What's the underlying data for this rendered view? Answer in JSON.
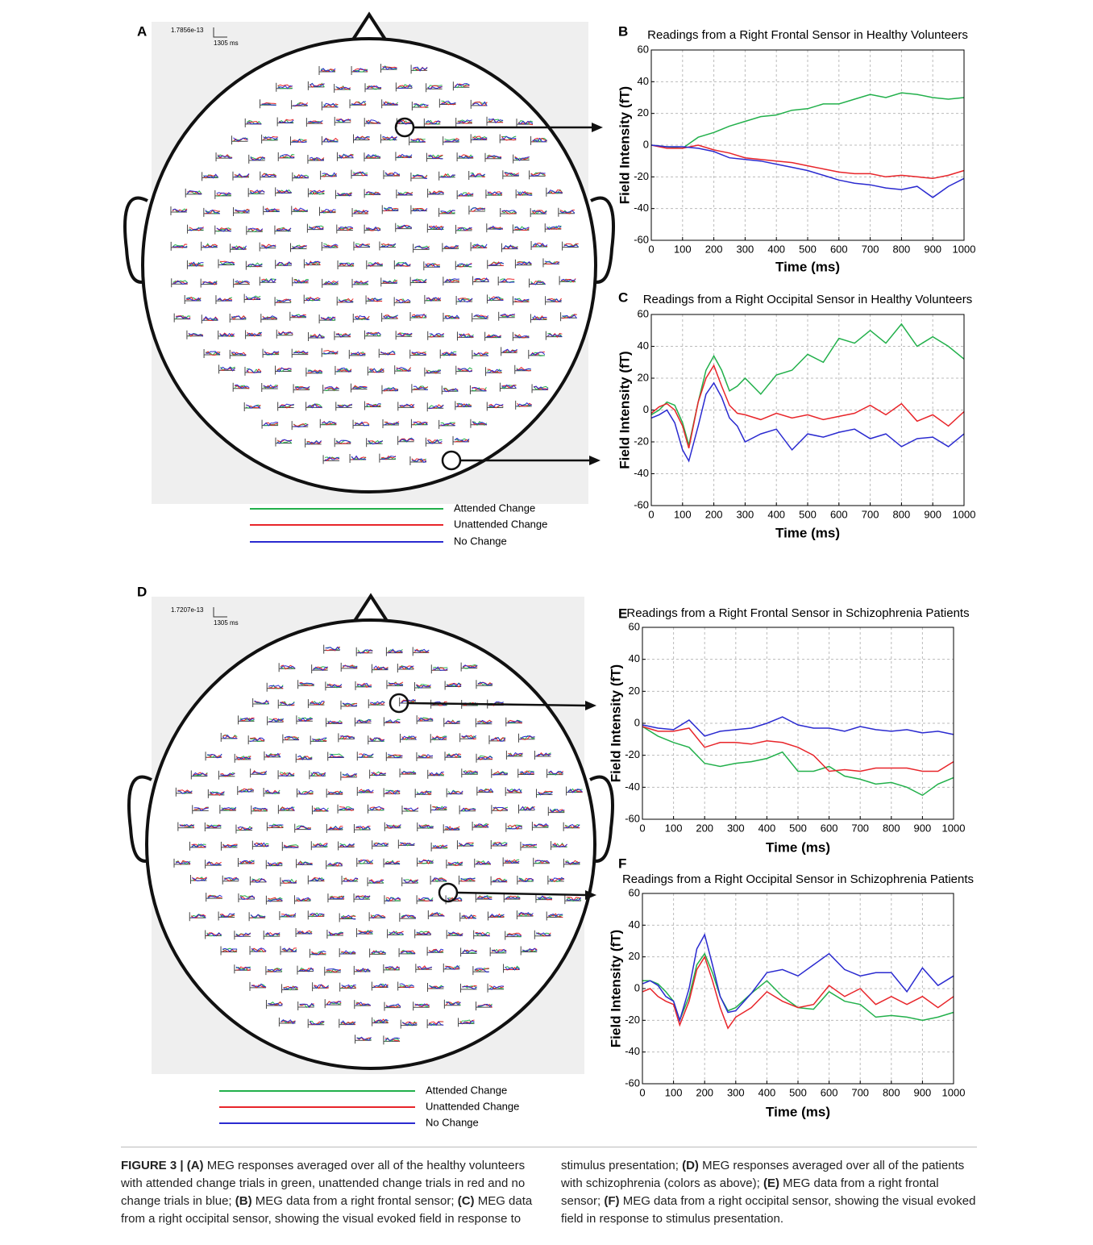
{
  "head_maps": [
    {
      "panel": "A",
      "scale_value": "1.7856e-13",
      "scale_time": "1305 ms"
    },
    {
      "panel": "D",
      "scale_value": "1.7207e-13",
      "scale_time": "1305 ms"
    }
  ],
  "chart_data": [
    {
      "type": "line",
      "panel": "B",
      "title": "Readings from a Right Frontal Sensor in Healthy Volunteers",
      "xlabel": "Time (ms)",
      "ylabel": "Field Intensity (fT)",
      "x": [
        0,
        50,
        100,
        150,
        200,
        250,
        300,
        350,
        400,
        450,
        500,
        550,
        600,
        650,
        700,
        750,
        800,
        850,
        900,
        950,
        1000
      ],
      "series": [
        {
          "name": "Attended Change",
          "color": "#22b04b",
          "values": [
            0,
            -1,
            -2,
            5,
            8,
            12,
            15,
            18,
            19,
            22,
            23,
            26,
            26,
            29,
            32,
            30,
            33,
            32,
            30,
            29,
            30
          ]
        },
        {
          "name": "Unattended Change",
          "color": "#e8252a",
          "values": [
            0,
            -2,
            -2,
            0,
            -3,
            -5,
            -8,
            -9,
            -10,
            -11,
            -13,
            -15,
            -17,
            -18,
            -18,
            -20,
            -19,
            -20,
            -21,
            -19,
            -16
          ]
        },
        {
          "name": "No Change",
          "color": "#2a2ad0",
          "values": [
            0,
            -1,
            -1,
            -2,
            -4,
            -8,
            -9,
            -10,
            -12,
            -14,
            -16,
            -19,
            -22,
            -24,
            -25,
            -27,
            -28,
            -26,
            -33,
            -26,
            -21
          ]
        }
      ],
      "xlim": [
        0,
        1000
      ],
      "ylim": [
        -60,
        60
      ],
      "xticks": [
        0,
        100,
        200,
        300,
        400,
        500,
        600,
        700,
        800,
        900,
        1000
      ],
      "yticks": [
        -60,
        -40,
        -20,
        0,
        20,
        40,
        60
      ],
      "grid": true
    },
    {
      "type": "line",
      "panel": "C",
      "title": "Readings from a Right Occipital Sensor in Healthy Volunteers",
      "xlabel": "Time (ms)",
      "ylabel": "Field Intensity (fT)",
      "x": [
        0,
        25,
        50,
        75,
        100,
        120,
        150,
        175,
        200,
        225,
        250,
        275,
        300,
        350,
        400,
        450,
        500,
        550,
        600,
        650,
        700,
        750,
        800,
        850,
        900,
        950,
        1000
      ],
      "series": [
        {
          "name": "Attended Change",
          "color": "#22b04b",
          "values": [
            -3,
            0,
            5,
            3,
            -8,
            -22,
            5,
            25,
            34,
            25,
            12,
            15,
            20,
            10,
            22,
            25,
            35,
            30,
            45,
            42,
            50,
            42,
            54,
            40,
            46,
            40,
            32
          ]
        },
        {
          "name": "Unattended Change",
          "color": "#e8252a",
          "values": [
            -2,
            2,
            4,
            0,
            -10,
            -24,
            5,
            20,
            28,
            15,
            3,
            -2,
            -3,
            -6,
            -2,
            -5,
            -3,
            -6,
            -4,
            -2,
            3,
            -3,
            4,
            -7,
            -3,
            -10,
            -1
          ]
        },
        {
          "name": "No Change",
          "color": "#2a2ad0",
          "values": [
            -5,
            -3,
            0,
            -8,
            -25,
            -32,
            -10,
            10,
            17,
            8,
            -5,
            -10,
            -20,
            -15,
            -12,
            -25,
            -15,
            -17,
            -14,
            -12,
            -18,
            -15,
            -23,
            -18,
            -17,
            -23,
            -15
          ]
        }
      ],
      "xlim": [
        0,
        1000
      ],
      "ylim": [
        -60,
        60
      ],
      "xticks": [
        0,
        100,
        200,
        300,
        400,
        500,
        600,
        700,
        800,
        900,
        1000
      ],
      "yticks": [
        -60,
        -40,
        -20,
        0,
        20,
        40,
        60
      ],
      "grid": true
    },
    {
      "type": "line",
      "panel": "E",
      "title": "Readings from a Right Frontal Sensor in Schizophrenia Patients",
      "xlabel": "Time (ms)",
      "ylabel": "Field Intensity (fT)",
      "x": [
        0,
        50,
        100,
        150,
        200,
        250,
        300,
        350,
        400,
        450,
        500,
        550,
        600,
        650,
        700,
        750,
        800,
        850,
        900,
        950,
        1000
      ],
      "series": [
        {
          "name": "Attended Change",
          "color": "#22b04b",
          "values": [
            -2,
            -8,
            -12,
            -15,
            -25,
            -27,
            -25,
            -24,
            -22,
            -18,
            -30,
            -30,
            -27,
            -33,
            -35,
            -38,
            -37,
            -40,
            -45,
            -38,
            -34
          ]
        },
        {
          "name": "Unattended Change",
          "color": "#e8252a",
          "values": [
            -2,
            -5,
            -5,
            -3,
            -15,
            -12,
            -12,
            -13,
            -11,
            -12,
            -15,
            -20,
            -30,
            -29,
            -30,
            -28,
            -28,
            -28,
            -30,
            -30,
            -24
          ]
        },
        {
          "name": "No Change",
          "color": "#2a2ad0",
          "values": [
            -1,
            -3,
            -4,
            2,
            -8,
            -5,
            -4,
            -3,
            0,
            4,
            -1,
            -3,
            -3,
            -5,
            -2,
            -4,
            -5,
            -4,
            -6,
            -5,
            -7
          ]
        }
      ],
      "xlim": [
        0,
        1000
      ],
      "ylim": [
        -60,
        60
      ],
      "xticks": [
        0,
        100,
        200,
        300,
        400,
        500,
        600,
        700,
        800,
        900,
        1000
      ],
      "yticks": [
        -60,
        -40,
        -20,
        0,
        20,
        40,
        60
      ],
      "grid": true
    },
    {
      "type": "line",
      "panel": "F",
      "title": "Readings from a Right Occipital Sensor in Schizophrenia Patients",
      "xlabel": "Time (ms)",
      "ylabel": "Field Intensity (fT)",
      "x": [
        0,
        25,
        50,
        75,
        100,
        120,
        150,
        175,
        200,
        225,
        250,
        275,
        300,
        350,
        400,
        450,
        500,
        550,
        600,
        650,
        700,
        750,
        800,
        850,
        900,
        950,
        1000
      ],
      "series": [
        {
          "name": "Attended Change",
          "color": "#22b04b",
          "values": [
            5,
            5,
            3,
            -2,
            -8,
            -20,
            -5,
            15,
            22,
            10,
            -5,
            -14,
            -12,
            -3,
            5,
            -5,
            -12,
            -13,
            -2,
            -8,
            -10,
            -18,
            -17,
            -18,
            -20,
            -18,
            -15
          ]
        },
        {
          "name": "Unattended Change",
          "color": "#e8252a",
          "values": [
            -2,
            0,
            -5,
            -8,
            -10,
            -23,
            -8,
            12,
            20,
            5,
            -12,
            -25,
            -18,
            -12,
            -2,
            -8,
            -12,
            -10,
            2,
            -5,
            0,
            -10,
            -5,
            -10,
            -5,
            -12,
            -5
          ]
        },
        {
          "name": "No Change",
          "color": "#2a2ad0",
          "values": [
            3,
            5,
            2,
            -5,
            -8,
            -20,
            0,
            25,
            34,
            15,
            -5,
            -15,
            -14,
            -3,
            10,
            12,
            8,
            15,
            22,
            12,
            8,
            10,
            10,
            -2,
            13,
            2,
            8
          ]
        }
      ],
      "xlim": [
        0,
        1000
      ],
      "ylim": [
        -60,
        60
      ],
      "xticks": [
        0,
        100,
        200,
        300,
        400,
        500,
        600,
        700,
        800,
        900,
        1000
      ],
      "yticks": [
        -60,
        -40,
        -20,
        0,
        20,
        40,
        60
      ],
      "grid": true
    }
  ],
  "caption": {
    "figure_label": "FIGURE 3 |",
    "items": [
      {
        "label": "(A)",
        "text": "MEG responses averaged over all of the healthy volunteers with attended change trials in green, unattended change trials in red and no change trials in blue;"
      },
      {
        "label": "(B)",
        "text": "MEG data from a right frontal sensor;"
      },
      {
        "label": "(C)",
        "text": "MEG data from a right occipital sensor, showing the visual evoked field in response to stimulus presentation;"
      },
      {
        "label": "(D)",
        "text": "MEG responses averaged over all of the patients with schizophrenia (colors as above);"
      },
      {
        "label": "(E)",
        "text": "MEG data from a right frontal sensor;"
      },
      {
        "label": "(F)",
        "text": "MEG data from a right occipital sensor, showing the visual evoked field in response to stimulus presentation."
      }
    ]
  }
}
